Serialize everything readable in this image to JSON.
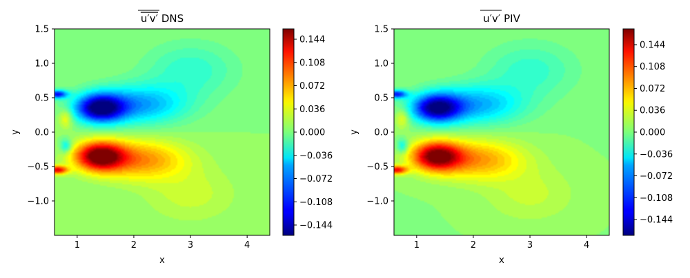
{
  "chart_data": [
    {
      "type": "heatmap",
      "title": "u′v′ DNS",
      "title_main": "u′v′",
      "title_suffix": "DNS",
      "overline": true,
      "xlabel": "x",
      "ylabel": "y",
      "xlim": [
        0.6,
        4.4
      ],
      "ylim": [
        -1.5,
        1.5
      ],
      "xticks": [
        1,
        2,
        3,
        4
      ],
      "xtick_labels": [
        "1",
        "2",
        "3",
        "4"
      ],
      "yticks": [
        1.5,
        1.0,
        0.5,
        0.0,
        -0.5,
        -1.0
      ],
      "ytick_labels": [
        "1.5",
        "1.0",
        "0.5",
        "0.0",
        "−0.5",
        "−1.0"
      ],
      "colormap": "jet",
      "color_range": [
        -0.16,
        0.16
      ],
      "colorbar_ticks": [
        0.144,
        0.108,
        0.072,
        0.036,
        0.0,
        -0.036,
        -0.072,
        -0.108,
        -0.144
      ],
      "colorbar_tick_labels": [
        "0.144",
        "0.108",
        "0.072",
        "0.036",
        "0.000",
        "−0.036",
        "−0.072",
        "−0.108",
        "−0.144"
      ],
      "features": [
        {
          "kind": "negative_lobe",
          "x": 1.4,
          "y": 0.35,
          "peak": -0.16
        },
        {
          "kind": "positive_lobe",
          "x": 1.4,
          "y": -0.35,
          "peak": 0.16
        },
        {
          "kind": "positive_spot",
          "x": 0.8,
          "y": 0.2,
          "peak": 0.04
        },
        {
          "kind": "negative_spot",
          "x": 0.8,
          "y": -0.2,
          "peak": -0.05
        }
      ]
    },
    {
      "type": "heatmap",
      "title": "u′v′ PIV",
      "title_main": "u′v′",
      "title_suffix": "PIV",
      "overline": true,
      "xlabel": "x",
      "ylabel": "y",
      "xlim": [
        0.6,
        4.4
      ],
      "ylim": [
        -1.5,
        1.5
      ],
      "xticks": [
        1,
        2,
        3,
        4
      ],
      "xtick_labels": [
        "1",
        "2",
        "3",
        "4"
      ],
      "yticks": [
        1.5,
        1.0,
        0.5,
        0.0,
        -0.5,
        -1.0
      ],
      "ytick_labels": [
        "1.5",
        "1.0",
        "0.5",
        "0.0",
        "−0.5",
        "−1.0"
      ],
      "colormap": "jet",
      "color_range": [
        -0.17,
        0.17
      ],
      "colorbar_ticks": [
        0.144,
        0.108,
        0.072,
        0.036,
        0.0,
        -0.036,
        -0.072,
        -0.108,
        -0.144
      ],
      "colorbar_tick_labels": [
        "0.144",
        "0.108",
        "0.072",
        "0.036",
        "0.000",
        "−0.036",
        "−0.072",
        "−0.108",
        "−0.144"
      ],
      "features": [
        {
          "kind": "negative_lobe",
          "x": 1.35,
          "y": 0.35,
          "peak": -0.16
        },
        {
          "kind": "positive_lobe",
          "x": 1.35,
          "y": -0.35,
          "peak": 0.16
        },
        {
          "kind": "positive_spot",
          "x": 0.75,
          "y": 0.2,
          "peak": 0.04
        },
        {
          "kind": "negative_spot",
          "x": 0.75,
          "y": -0.2,
          "peak": -0.05
        }
      ]
    }
  ]
}
